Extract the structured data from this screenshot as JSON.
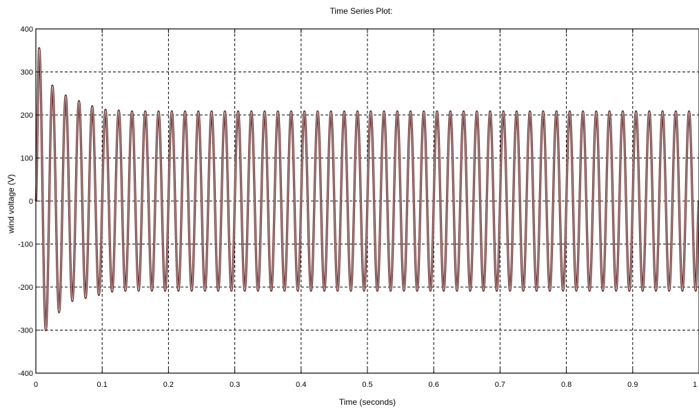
{
  "chart_data": {
    "type": "line",
    "title": "Time Series Plot:",
    "xlabel": "Time (seconds)",
    "ylabel": "wind voltage (V)",
    "xlim": [
      0,
      1
    ],
    "ylim": [
      -400,
      400
    ],
    "x_ticks": [
      0,
      0.1,
      0.2,
      0.3,
      0.4,
      0.5,
      0.6,
      0.7,
      0.8,
      0.9,
      1
    ],
    "x_tick_labels": [
      "0",
      "0.1",
      "0.2",
      "0.3",
      "0.4",
      "0.5",
      "0.6",
      "0.7",
      "0.8",
      "0.9",
      "1"
    ],
    "y_ticks": [
      -400,
      -300,
      -200,
      -100,
      0,
      100,
      200,
      300,
      400
    ],
    "y_tick_labels": [
      "-400",
      "-300",
      "-200",
      "-100",
      "0",
      "100",
      "200",
      "300",
      "400"
    ],
    "grid": true,
    "series": [
      {
        "color": "#6b2a2a",
        "description": "50 Hz sinusoidal voltage with start-up transient",
        "frequency_hz": 50,
        "steady_state_amplitude": 208,
        "x": [
          0,
          0.005,
          0.015,
          0.025,
          0.035,
          0.045,
          0.055,
          0.065,
          0.075,
          0.085,
          0.095,
          0.105,
          0.115,
          0.125,
          0.135,
          0.145,
          0.155,
          0.165,
          0.175,
          0.185,
          0.195,
          0.205,
          0.215,
          0.225,
          0.235,
          0.245,
          0.255,
          0.265,
          0.275,
          0.285,
          0.295,
          0.305,
          0.315,
          0.325,
          0.335,
          0.345,
          0.355,
          0.365,
          0.375,
          0.385,
          0.395,
          0.405,
          0.415,
          0.425,
          0.435,
          0.445,
          0.455,
          0.465,
          0.475,
          0.485,
          0.495,
          0.505,
          0.515,
          0.525,
          0.535,
          0.545,
          0.555,
          0.565,
          0.575,
          0.585,
          0.595,
          0.605,
          0.615,
          0.625,
          0.635,
          0.645,
          0.655,
          0.665,
          0.675,
          0.685,
          0.695,
          0.705,
          0.715,
          0.725,
          0.735,
          0.745,
          0.755,
          0.765,
          0.775,
          0.785,
          0.795,
          0.805,
          0.815,
          0.825,
          0.835,
          0.845,
          0.855,
          0.865,
          0.875,
          0.885,
          0.895,
          0.905,
          0.915,
          0.925,
          0.935,
          0.945,
          0.955,
          0.965,
          0.975,
          0.985,
          0.995,
          1.0
        ],
        "y": [
          0,
          355,
          -300,
          268,
          -258,
          245,
          -232,
          232,
          -225,
          220,
          -218,
          212,
          -210,
          210,
          -208,
          208,
          -208,
          208,
          -208,
          208,
          -208,
          208,
          -208,
          208,
          -208,
          208,
          -208,
          208,
          -208,
          208,
          -208,
          208,
          -208,
          208,
          -208,
          208,
          -208,
          208,
          -208,
          208,
          -208,
          208,
          -208,
          208,
          -208,
          208,
          -208,
          208,
          -208,
          208,
          -208,
          208,
          -208,
          208,
          -208,
          208,
          -208,
          208,
          -208,
          208,
          -208,
          208,
          -208,
          208,
          -208,
          208,
          -208,
          208,
          -208,
          208,
          -208,
          208,
          -208,
          208,
          -208,
          208,
          -208,
          208,
          -208,
          208,
          -208,
          208,
          -208,
          208,
          -208,
          208,
          -208,
          208,
          -208,
          208,
          -208,
          208,
          -208,
          208,
          -208,
          208,
          -208,
          208,
          -208,
          208,
          -208,
          0
        ]
      }
    ]
  },
  "colors": {
    "background": "#ffffff",
    "axes": "#000000",
    "grid": "#000000",
    "line": "#6b2a2a",
    "line_highlight": "#c8c8c8"
  }
}
